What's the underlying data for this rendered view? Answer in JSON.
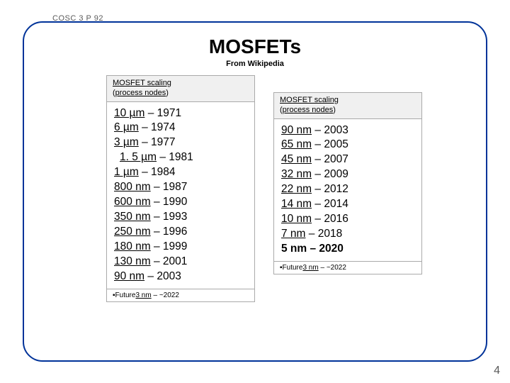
{
  "course": "COSC 3 P 92",
  "title": "MOSFETs",
  "subtitle": "From Wikipedia",
  "pageNumber": "4",
  "header": {
    "line1": "MOSFET scaling",
    "line2a": "process nodes"
  },
  "future": {
    "label": "Future",
    "node": "3 nm",
    "year": "~2022"
  },
  "leftNodes": [
    {
      "node": "10 µm",
      "year": "1971",
      "indent": false
    },
    {
      "node": "6 µm",
      "year": "1974",
      "indent": false
    },
    {
      "node": "3 µm",
      "year": "1977",
      "indent": false
    },
    {
      "node": "1. 5 µm",
      "year": "1981",
      "indent": true
    },
    {
      "node": "1 µm",
      "year": "1984",
      "indent": false
    },
    {
      "node": "800 nm",
      "year": "1987",
      "indent": false
    },
    {
      "node": "600 nm",
      "year": "1990",
      "indent": false
    },
    {
      "node": "350 nm",
      "year": "1993",
      "indent": false
    },
    {
      "node": "250 nm",
      "year": "1996",
      "indent": false
    },
    {
      "node": "180 nm",
      "year": "1999",
      "indent": false
    },
    {
      "node": "130 nm",
      "year": "2001",
      "indent": false
    },
    {
      "node": "90 nm",
      "year": "2003",
      "indent": false
    }
  ],
  "rightNodes": [
    {
      "node": "90 nm",
      "year": "2003",
      "bold": false
    },
    {
      "node": "65 nm",
      "year": "2005",
      "bold": false
    },
    {
      "node": "45 nm",
      "year": "2007",
      "bold": false
    },
    {
      "node": "32 nm",
      "year": "2009",
      "bold": false
    },
    {
      "node": "22 nm",
      "year": "2012",
      "bold": false
    },
    {
      "node": "14 nm",
      "year": "2014",
      "bold": false
    },
    {
      "node": "10 nm",
      "year": "2016",
      "bold": false
    },
    {
      "node": "7 nm",
      "year": "2018",
      "bold": false
    },
    {
      "node": "5 nm",
      "year": "2020",
      "bold": true
    }
  ]
}
